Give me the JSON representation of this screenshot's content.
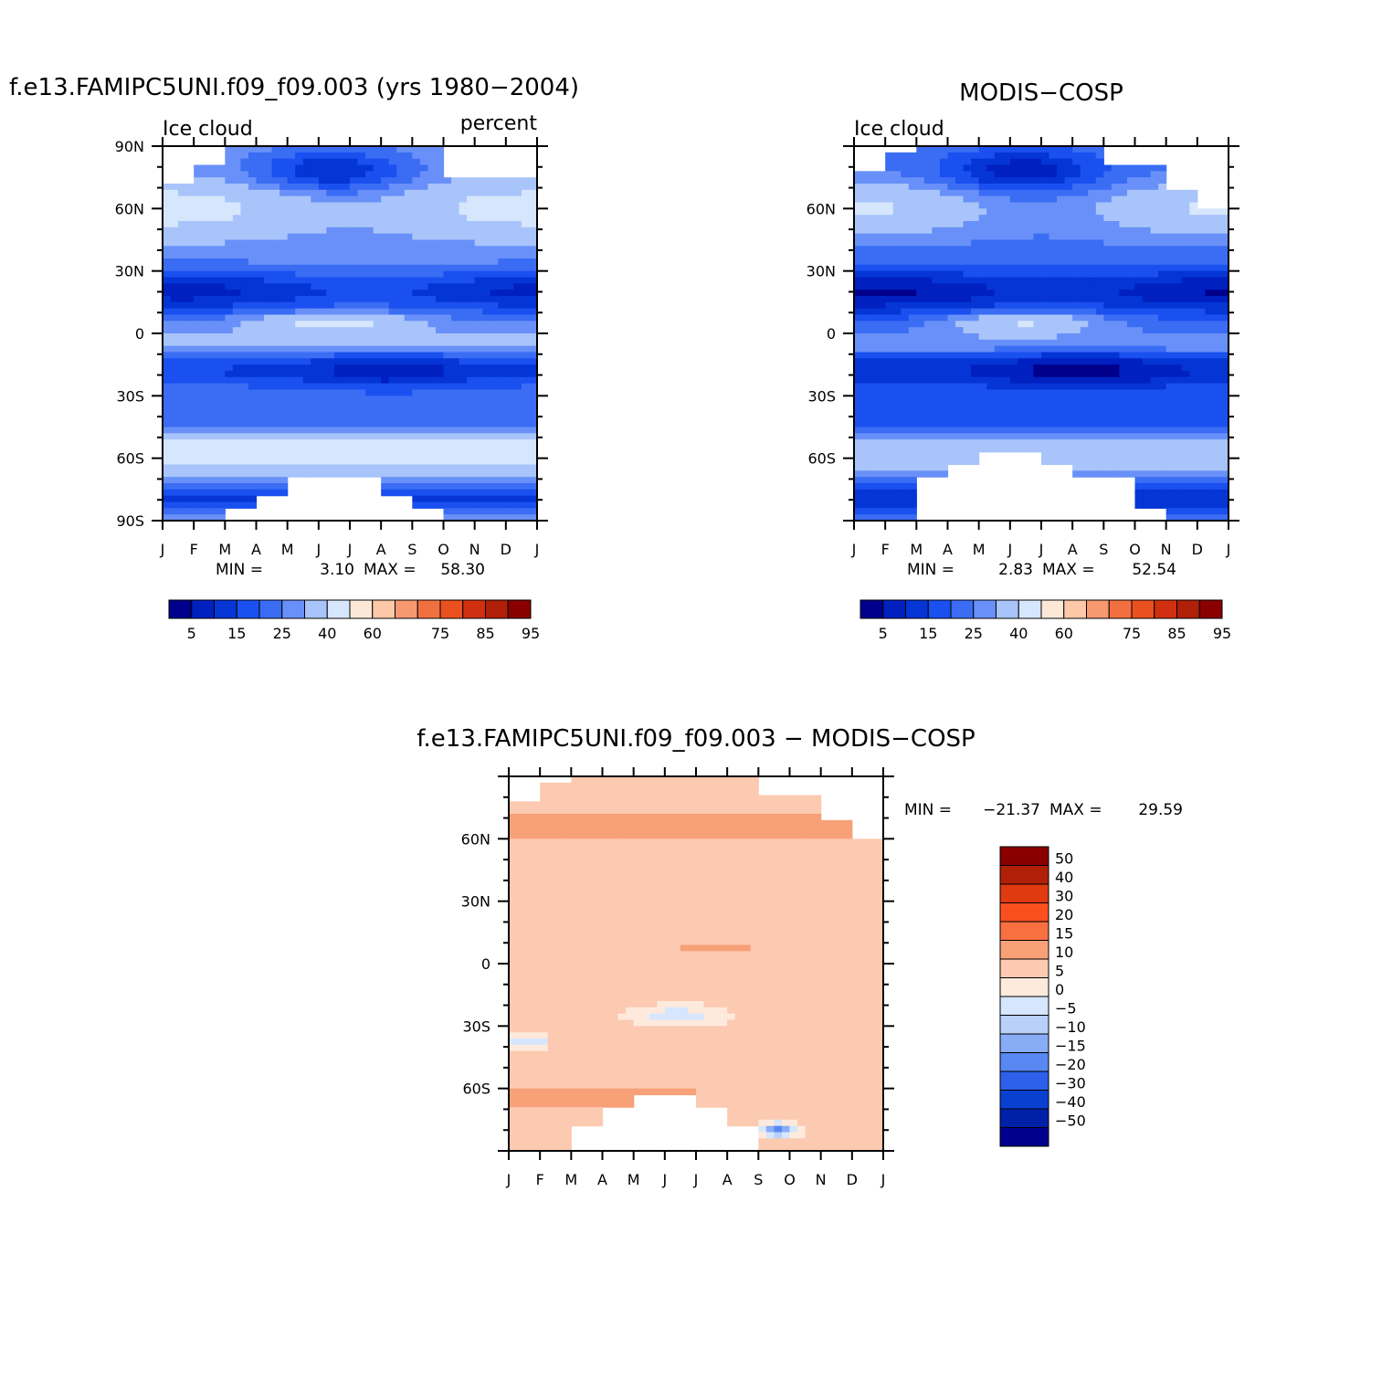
{
  "chart_data": [
    {
      "type": "heatmap",
      "title": "f.e13.FAMIPC5UNI.f09_f09.003 (yrs 1980-2004)",
      "left_label": "Ice cloud",
      "right_label": "percent",
      "x_tick_labels": [
        "J",
        "F",
        "M",
        "A",
        "M",
        "J",
        "J",
        "A",
        "S",
        "O",
        "N",
        "D",
        "J"
      ],
      "y_tick_labels": [
        "90N",
        "60N",
        "30N",
        "0",
        "30S",
        "60S",
        "90S"
      ],
      "ylim": [
        -90,
        90
      ],
      "min_label": "MIN =",
      "min_value": "3.10",
      "max_label": "MAX =",
      "max_value": "58.30",
      "colorbar_labels": [
        "5",
        "15",
        "25",
        "40",
        "60",
        "75",
        "85",
        "95"
      ],
      "colorbar_levels": [
        5,
        10,
        15,
        20,
        25,
        30,
        40,
        50,
        60,
        65,
        70,
        75,
        80,
        85,
        90,
        95
      ],
      "grid": false
    },
    {
      "type": "heatmap",
      "title": "MODIS-COSP",
      "left_label": "Ice cloud",
      "x_tick_labels": [
        "J",
        "F",
        "M",
        "A",
        "M",
        "J",
        "J",
        "A",
        "S",
        "O",
        "N",
        "D",
        "J"
      ],
      "y_tick_labels": [
        "60N",
        "30N",
        "0",
        "30S",
        "60S"
      ],
      "ylim": [
        -90,
        90
      ],
      "min_label": "MIN =",
      "min_value": "2.83",
      "max_label": "MAX =",
      "max_value": "52.54",
      "colorbar_labels": [
        "5",
        "15",
        "25",
        "40",
        "60",
        "75",
        "85",
        "95"
      ],
      "colorbar_levels": [
        5,
        10,
        15,
        20,
        25,
        30,
        40,
        50,
        60,
        65,
        70,
        75,
        80,
        85,
        90,
        95
      ],
      "grid": false
    },
    {
      "type": "heatmap",
      "title": "f.e13.FAMIPC5UNI.f09_f09.003 - MODIS-COSP",
      "x_tick_labels": [
        "J",
        "F",
        "M",
        "A",
        "M",
        "J",
        "J",
        "A",
        "S",
        "O",
        "N",
        "D",
        "J"
      ],
      "y_tick_labels": [
        "60N",
        "30N",
        "0",
        "30S",
        "60S"
      ],
      "ylim": [
        -90,
        90
      ],
      "min_label": "MIN =",
      "min_value": "-21.37",
      "max_label": "MAX =",
      "max_value": "29.59",
      "colorbar_labels": [
        "50",
        "40",
        "30",
        "20",
        "15",
        "10",
        "5",
        "0",
        "-5",
        "-10",
        "-15",
        "-20",
        "-30",
        "-40",
        "-50"
      ],
      "colorbar_levels": [
        50,
        40,
        30,
        20,
        15,
        10,
        5,
        0,
        -5,
        -10,
        -15,
        -20,
        -30,
        -40,
        -50
      ],
      "legend_placement": "right",
      "grid": false
    }
  ],
  "colors": {
    "abs_scale": [
      "#00008c",
      "#0020c0",
      "#0535d5",
      "#1a50f0",
      "#3a6cf4",
      "#6890f8",
      "#a8c4fa",
      "#d6e6fc",
      "#fde8d8",
      "#fdc8a8",
      "#f89870",
      "#f27040",
      "#ea5020",
      "#d03010",
      "#b02008",
      "#8a0000"
    ],
    "diff_scale": [
      "#8a0000",
      "#b02008",
      "#e03a10",
      "#fa5020",
      "#f87040",
      "#f8a078",
      "#fccab0",
      "#feeadc",
      "#d6e6fc",
      "#b8d0fa",
      "#88acf6",
      "#5888f2",
      "#2c60ea",
      "#0a40d0",
      "#0020a8",
      "#00008c"
    ]
  }
}
